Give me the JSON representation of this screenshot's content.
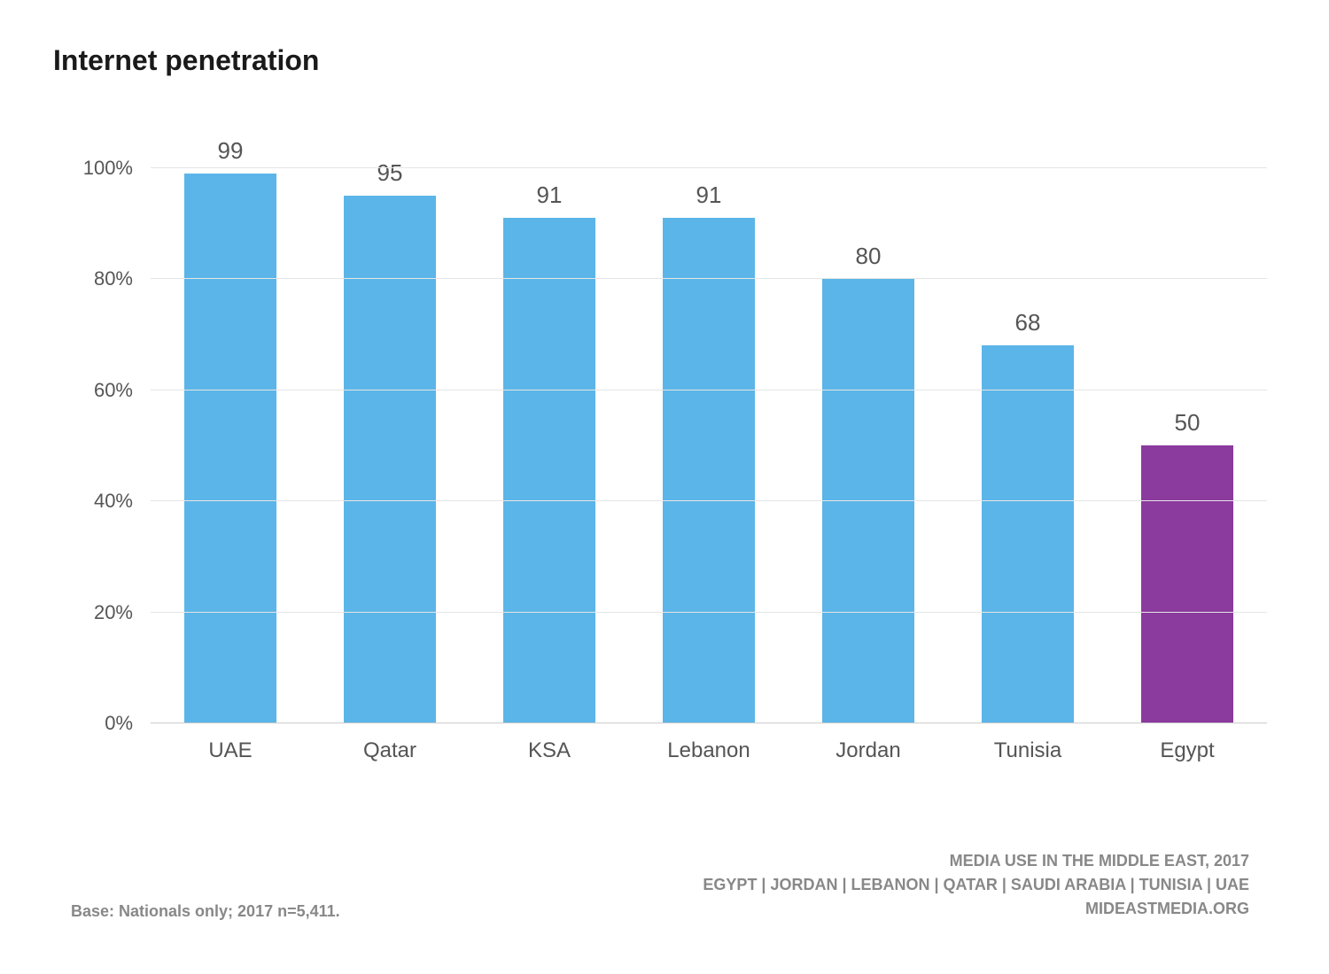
{
  "chart": {
    "type": "bar",
    "title": "Internet penetration",
    "title_fontsize": 32,
    "categories": [
      "UAE",
      "Qatar",
      "KSA",
      "Lebanon",
      "Jordan",
      "Tunisia",
      "Egypt"
    ],
    "values": [
      99,
      95,
      91,
      91,
      80,
      68,
      50
    ],
    "bar_colors": [
      "#5bb5e8",
      "#5bb5e8",
      "#5bb5e8",
      "#5bb5e8",
      "#5bb5e8",
      "#5bb5e8",
      "#8b3a9e"
    ],
    "ylim": [
      0,
      110
    ],
    "ytick_step": 20,
    "ytick_min": 0,
    "ytick_max": 100,
    "y_suffix": "%",
    "background_color": "#ffffff",
    "gridline_color": "#e5e5e5",
    "baseline_color": "#cccccc",
    "axis_label_color": "#555555",
    "value_label_color": "#555555",
    "axis_fontsize": 22,
    "xlabel_fontsize": 24,
    "value_fontsize": 26,
    "bar_width": 0.58
  },
  "footer": {
    "left": "Base: Nationals only; 2017 n=5,411.",
    "right_line1": "MEDIA USE IN THE MIDDLE EAST, 2017",
    "right_line2": "EGYPT | JORDAN | LEBANON | QATAR | SAUDI ARABIA | TUNISIA | UAE",
    "right_line3": "MIDEASTMEDIA.ORG",
    "fontsize": 18,
    "color": "#888888"
  }
}
